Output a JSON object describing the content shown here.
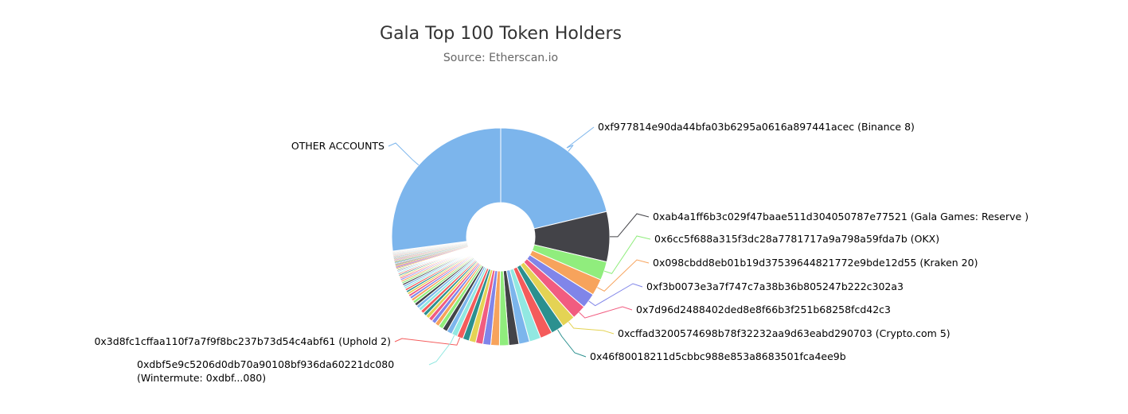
{
  "chart_data": {
    "type": "pie",
    "variant": "donut",
    "title": "Gala Top 100 Token Holders",
    "subtitle": "Source: Etherscan.io",
    "start_label": "0xf977814e90da44bfa03b6295a0616a897441acec (Binance 8)",
    "slices": [
      {
        "label": "0xf977814e90da44bfa03b6295a0616a897441acec (Binance 8)",
        "value": 20.0,
        "color": "#7cb5ec",
        "labeled": true
      },
      {
        "label": "0xab4a1ff6b3c029f47baae511d304050787e77521 (Gala Games: Reserve )",
        "value": 7.0,
        "color": "#434348",
        "labeled": true
      },
      {
        "label": "0x6cc5f688a315f3dc28a7781717a9a798a59fda7b (OKX)",
        "value": 2.6,
        "color": "#90ed7d",
        "labeled": true
      },
      {
        "label": "0x098cbdd8eb01b19d37539644821772e9bde12d55 (Kraken 20)",
        "value": 2.3,
        "color": "#f7a35c",
        "labeled": true
      },
      {
        "label": "0xf3b0073e3a7f747c7a38b36b805247b222c302a3",
        "value": 2.1,
        "color": "#8085e9",
        "labeled": true
      },
      {
        "label": "0x7d96d2488402ded8e8f66b3f251b68258fcd42c3",
        "value": 2.0,
        "color": "#f15c80",
        "labeled": true
      },
      {
        "label": "0xcffad3200574698b78f32232aa9d63eabd290703 (Crypto.com 5)",
        "value": 1.9,
        "color": "#e4d354",
        "labeled": true
      },
      {
        "label": "0x46f80018211d5cbbc988e853a8683501fca4ee9b",
        "value": 1.8,
        "color": "#2b908f",
        "labeled": true
      },
      {
        "label": "",
        "value": 1.7,
        "color": "#f45b5b",
        "labeled": false
      },
      {
        "label": "",
        "value": 1.6,
        "color": "#91e8e1",
        "labeled": false
      },
      {
        "label": "",
        "value": 1.5,
        "color": "#7cb5ec",
        "labeled": false
      },
      {
        "label": "",
        "value": 1.4,
        "color": "#434348",
        "labeled": false
      },
      {
        "label": "",
        "value": 1.3,
        "color": "#90ed7d",
        "labeled": false
      },
      {
        "label": "",
        "value": 1.2,
        "color": "#f7a35c",
        "labeled": false
      },
      {
        "label": "",
        "value": 1.1,
        "color": "#8085e9",
        "labeled": false
      },
      {
        "label": "",
        "value": 1.0,
        "color": "#f15c80",
        "labeled": false
      },
      {
        "label": "",
        "value": 0.95,
        "color": "#e4d354",
        "labeled": false
      },
      {
        "label": "",
        "value": 0.9,
        "color": "#2b908f",
        "labeled": false
      },
      {
        "label": "0x3d8fc1cffaa110f7a7f9f8bc237b73d54c4abf61 (Uphold 2)",
        "value": 0.85,
        "color": "#f45b5b",
        "labeled": true
      },
      {
        "label": "0xdbf5e9c5206d0db70a90108bf936da60221dc080 (Wintermute: 0xdbf...080)",
        "value": 0.8,
        "color": "#91e8e1",
        "labeled": true
      },
      {
        "label": "",
        "value": 0.75,
        "color": "#7cb5ec",
        "labeled": false
      },
      {
        "label": "",
        "value": 0.7,
        "color": "#434348",
        "labeled": false
      },
      {
        "label": "",
        "value": 0.65,
        "color": "#90ed7d",
        "labeled": false
      },
      {
        "label": "",
        "value": 0.6,
        "color": "#f7a35c",
        "labeled": false
      },
      {
        "label": "",
        "value": 0.58,
        "color": "#8085e9",
        "labeled": false
      },
      {
        "label": "",
        "value": 0.55,
        "color": "#f15c80",
        "labeled": false
      },
      {
        "label": "",
        "value": 0.52,
        "color": "#e4d354",
        "labeled": false
      },
      {
        "label": "",
        "value": 0.5,
        "color": "#2b908f",
        "labeled": false
      },
      {
        "label": "",
        "value": 0.48,
        "color": "#f45b5b",
        "labeled": false
      },
      {
        "label": "",
        "value": 0.46,
        "color": "#91e8e1",
        "labeled": false
      },
      {
        "label": "",
        "value": 0.44,
        "color": "#7cb5ec",
        "labeled": false
      },
      {
        "label": "",
        "value": 0.42,
        "color": "#434348",
        "labeled": false
      },
      {
        "label": "",
        "value": 0.4,
        "color": "#90ed7d",
        "labeled": false
      },
      {
        "label": "",
        "value": 0.38,
        "color": "#f7a35c",
        "labeled": false
      },
      {
        "label": "",
        "value": 0.36,
        "color": "#8085e9",
        "labeled": false
      },
      {
        "label": "",
        "value": 0.34,
        "color": "#f15c80",
        "labeled": false
      },
      {
        "label": "",
        "value": 0.32,
        "color": "#e4d354",
        "labeled": false
      },
      {
        "label": "",
        "value": 0.3,
        "color": "#2b908f",
        "labeled": false
      },
      {
        "label": "",
        "value": 0.29,
        "color": "#f45b5b",
        "labeled": false
      },
      {
        "label": "",
        "value": 0.28,
        "color": "#91e8e1",
        "labeled": false
      },
      {
        "label": "",
        "value": 0.27,
        "color": "#7cb5ec",
        "labeled": false
      },
      {
        "label": "",
        "value": 0.26,
        "color": "#434348",
        "labeled": false
      },
      {
        "label": "",
        "value": 0.25,
        "color": "#90ed7d",
        "labeled": false
      },
      {
        "label": "",
        "value": 0.24,
        "color": "#f7a35c",
        "labeled": false
      },
      {
        "label": "",
        "value": 0.23,
        "color": "#8085e9",
        "labeled": false
      },
      {
        "label": "",
        "value": 0.22,
        "color": "#f15c80",
        "labeled": false
      },
      {
        "label": "",
        "value": 0.21,
        "color": "#e4d354",
        "labeled": false
      },
      {
        "label": "",
        "value": 0.2,
        "color": "#2b908f",
        "labeled": false
      },
      {
        "label": "",
        "value": 0.19,
        "color": "#f45b5b",
        "labeled": false
      },
      {
        "label": "",
        "value": 0.18,
        "color": "#91e8e1",
        "labeled": false
      },
      {
        "label": "",
        "value": 0.17,
        "color": "#7cb5ec",
        "labeled": false
      },
      {
        "label": "",
        "value": 0.16,
        "color": "#434348",
        "labeled": false
      },
      {
        "label": "",
        "value": 0.15,
        "color": "#90ed7d",
        "labeled": false
      },
      {
        "label": "",
        "value": 0.14,
        "color": "#f7a35c",
        "labeled": false
      },
      {
        "label": "",
        "value": 0.13,
        "color": "#8085e9",
        "labeled": false
      },
      {
        "label": "",
        "value": 0.12,
        "color": "#f15c80",
        "labeled": false
      },
      {
        "label": "",
        "value": 0.11,
        "color": "#e4d354",
        "labeled": false
      },
      {
        "label": "",
        "value": 0.1,
        "color": "#2b908f",
        "labeled": false
      },
      {
        "label": "",
        "value": 0.1,
        "color": "#f45b5b",
        "labeled": false
      },
      {
        "label": "",
        "value": 0.1,
        "color": "#91e8e1",
        "labeled": false
      },
      {
        "label": "",
        "value": 0.09,
        "color": "#7cb5ec",
        "labeled": false
      },
      {
        "label": "",
        "value": 0.09,
        "color": "#434348",
        "labeled": false
      },
      {
        "label": "",
        "value": 0.09,
        "color": "#90ed7d",
        "labeled": false
      },
      {
        "label": "",
        "value": 0.08,
        "color": "#f7a35c",
        "labeled": false
      },
      {
        "label": "",
        "value": 0.08,
        "color": "#8085e9",
        "labeled": false
      },
      {
        "label": "",
        "value": 0.08,
        "color": "#f15c80",
        "labeled": false
      },
      {
        "label": "",
        "value": 0.07,
        "color": "#e4d354",
        "labeled": false
      },
      {
        "label": "",
        "value": 0.07,
        "color": "#2b908f",
        "labeled": false
      },
      {
        "label": "",
        "value": 0.07,
        "color": "#f45b5b",
        "labeled": false
      },
      {
        "label": "",
        "value": 0.06,
        "color": "#91e8e1",
        "labeled": false
      },
      {
        "label": "",
        "value": 0.06,
        "color": "#7cb5ec",
        "labeled": false
      },
      {
        "label": "",
        "value": 0.06,
        "color": "#434348",
        "labeled": false
      },
      {
        "label": "",
        "value": 0.05,
        "color": "#90ed7d",
        "labeled": false
      },
      {
        "label": "",
        "value": 0.05,
        "color": "#f7a35c",
        "labeled": false
      },
      {
        "label": "",
        "value": 0.05,
        "color": "#8085e9",
        "labeled": false
      },
      {
        "label": "",
        "value": 0.05,
        "color": "#f15c80",
        "labeled": false
      },
      {
        "label": "",
        "value": 0.04,
        "color": "#e4d354",
        "labeled": false
      },
      {
        "label": "",
        "value": 0.04,
        "color": "#2b908f",
        "labeled": false
      },
      {
        "label": "",
        "value": 0.04,
        "color": "#f45b5b",
        "labeled": false
      },
      {
        "label": "",
        "value": 0.04,
        "color": "#91e8e1",
        "labeled": false
      },
      {
        "label": "",
        "value": 0.04,
        "color": "#7cb5ec",
        "labeled": false
      },
      {
        "label": "",
        "value": 0.03,
        "color": "#434348",
        "labeled": false
      },
      {
        "label": "",
        "value": 0.03,
        "color": "#90ed7d",
        "labeled": false
      },
      {
        "label": "",
        "value": 0.03,
        "color": "#f7a35c",
        "labeled": false
      },
      {
        "label": "",
        "value": 0.03,
        "color": "#8085e9",
        "labeled": false
      },
      {
        "label": "",
        "value": 0.03,
        "color": "#f15c80",
        "labeled": false
      },
      {
        "label": "",
        "value": 0.03,
        "color": "#e4d354",
        "labeled": false
      },
      {
        "label": "",
        "value": 0.02,
        "color": "#2b908f",
        "labeled": false
      },
      {
        "label": "",
        "value": 0.02,
        "color": "#f45b5b",
        "labeled": false
      },
      {
        "label": "",
        "value": 0.02,
        "color": "#91e8e1",
        "labeled": false
      },
      {
        "label": "",
        "value": 0.02,
        "color": "#7cb5ec",
        "labeled": false
      },
      {
        "label": "",
        "value": 0.02,
        "color": "#434348",
        "labeled": false
      },
      {
        "label": "",
        "value": 0.02,
        "color": "#90ed7d",
        "labeled": false
      },
      {
        "label": "",
        "value": 0.02,
        "color": "#f7a35c",
        "labeled": false
      },
      {
        "label": "",
        "value": 0.02,
        "color": "#8085e9",
        "labeled": false
      },
      {
        "label": "",
        "value": 0.02,
        "color": "#f15c80",
        "labeled": false
      },
      {
        "label": "",
        "value": 0.01,
        "color": "#e4d354",
        "labeled": false
      },
      {
        "label": "",
        "value": 0.01,
        "color": "#2b908f",
        "labeled": false
      },
      {
        "label": "",
        "value": 0.01,
        "color": "#f45b5b",
        "labeled": false
      },
      {
        "label": "OTHER ACCOUNTS",
        "value": 25.5,
        "color": "#7cb5ec",
        "labeled": true
      }
    ]
  }
}
